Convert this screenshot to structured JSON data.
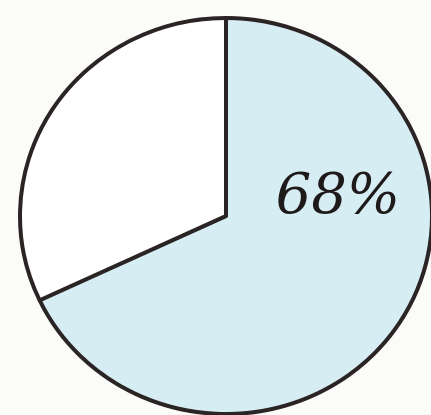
{
  "chart_data": {
    "type": "pie",
    "values": [
      68,
      32
    ],
    "value_labels": [
      "68%",
      null
    ],
    "colors": [
      "#d7edf4",
      "#ffffff"
    ]
  }
}
